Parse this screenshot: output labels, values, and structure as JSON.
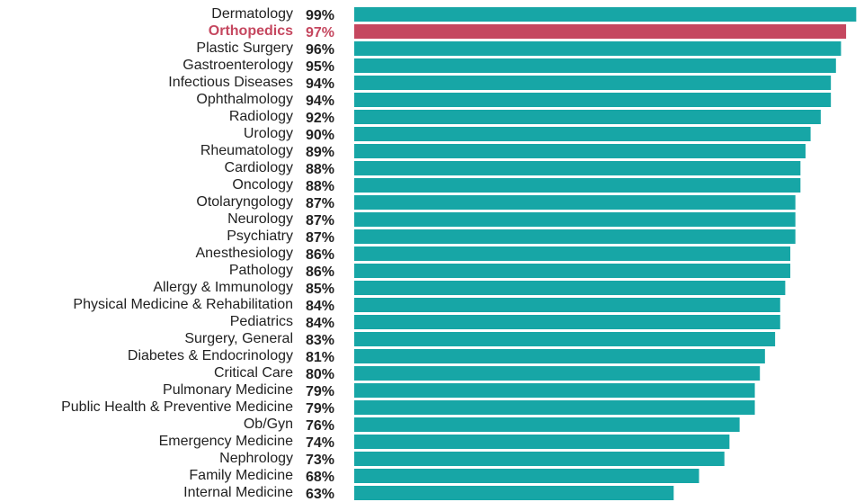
{
  "chart_data": {
    "type": "bar",
    "orientation": "horizontal",
    "categories": [
      "Dermatology",
      "Orthopedics",
      "Plastic Surgery",
      "Gastroenterology",
      "Infectious Diseases",
      "Ophthalmology",
      "Radiology",
      "Urology",
      "Rheumatology",
      "Cardiology",
      "Oncology",
      "Otolaryngology",
      "Neurology",
      "Psychiatry",
      "Anesthesiology",
      "Pathology",
      "Allergy & Immunology",
      "Physical Medicine & Rehabilitation",
      "Pediatrics",
      "Surgery, General",
      "Diabetes & Endocrinology",
      "Critical Care",
      "Pulmonary Medicine",
      "Public Health & Preventive Medicine",
      "Ob/Gyn",
      "Emergency Medicine",
      "Nephrology",
      "Family Medicine",
      "Internal Medicine"
    ],
    "values": [
      99,
      97,
      96,
      95,
      94,
      94,
      92,
      90,
      89,
      88,
      88,
      87,
      87,
      87,
      86,
      86,
      85,
      84,
      84,
      83,
      81,
      80,
      79,
      79,
      76,
      74,
      73,
      68,
      63
    ],
    "value_labels": [
      "99%",
      "97%",
      "96%",
      "95%",
      "94%",
      "94%",
      "92%",
      "90%",
      "89%",
      "88%",
      "88%",
      "87%",
      "87%",
      "87%",
      "86%",
      "86%",
      "85%",
      "84%",
      "84%",
      "83%",
      "81%",
      "80%",
      "79%",
      "79%",
      "76%",
      "74%",
      "73%",
      "68%",
      "63%"
    ],
    "color": "#17a6a6",
    "colors": [
      "#17a6a6",
      "#c5475f",
      "#17a6a6",
      "#17a6a6",
      "#17a6a6",
      "#17a6a6",
      "#17a6a6",
      "#17a6a6",
      "#17a6a6",
      "#17a6a6",
      "#17a6a6",
      "#17a6a6",
      "#17a6a6",
      "#17a6a6",
      "#17a6a6",
      "#17a6a6",
      "#17a6a6",
      "#17a6a6",
      "#17a6a6",
      "#17a6a6",
      "#17a6a6",
      "#17a6a6",
      "#17a6a6",
      "#17a6a6",
      "#17a6a6",
      "#17a6a6",
      "#17a6a6",
      "#17a6a6",
      "#17a6a6"
    ],
    "xlim": [
      0,
      100
    ]
  }
}
